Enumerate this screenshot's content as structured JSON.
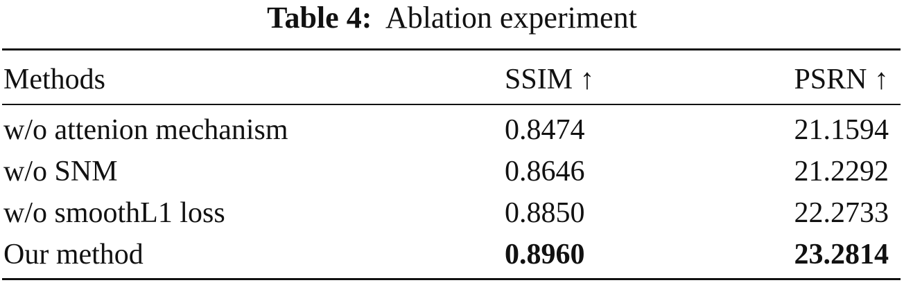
{
  "caption": {
    "label": "Table 4:",
    "title": "Ablation experiment"
  },
  "table": {
    "headers": [
      "Methods",
      "SSIM ↑",
      "PSRN ↑"
    ],
    "rows": [
      [
        "w/o attenion mechanism",
        "0.8474",
        "21.1594"
      ],
      [
        "w/o SNM",
        "0.8646",
        "21.2292"
      ],
      [
        "w/o smoothL1 loss",
        "0.8850",
        "22.2733"
      ],
      [
        "Our method",
        "0.8960",
        "23.2814"
      ]
    ],
    "bold_row": 3
  }
}
